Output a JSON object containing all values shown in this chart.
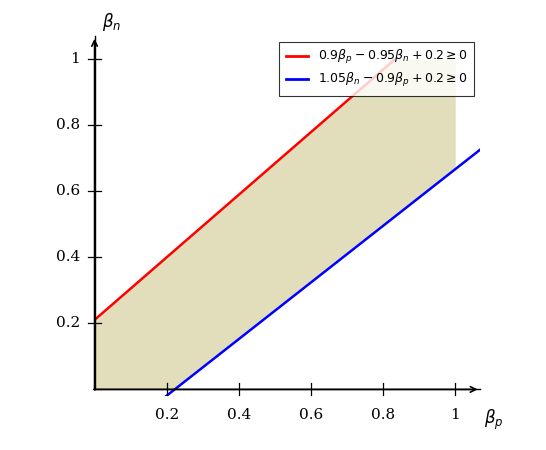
{
  "xlim": [
    0,
    1
  ],
  "ylim": [
    0,
    1
  ],
  "xticks": [
    0.2,
    0.4,
    0.6,
    0.8,
    1.0
  ],
  "yticks": [
    0.2,
    0.4,
    0.6,
    0.8,
    1.0
  ],
  "xtick_labels": [
    "0.2",
    "0.4",
    "0.6",
    "0.8",
    "1"
  ],
  "ytick_labels": [
    "0.2",
    "0.4",
    "0.6",
    "0.8",
    "1"
  ],
  "xlabel": "$\\beta_p$",
  "ylabel": "$\\beta_n$",
  "red_label": "$0.9\\beta_p - 0.95\\beta_n + 0.2 \\geq 0$",
  "blue_label": "$1.05\\beta_n - 0.9\\beta_p + 0.2 \\geq 0$",
  "red_color": "#ff0000",
  "blue_color": "#0000ff",
  "fill_color": "#ddd9b0",
  "fill_alpha": 0.85,
  "background_color": "#ffffff",
  "figsize": [
    5.46,
    4.5
  ],
  "dpi": 100
}
